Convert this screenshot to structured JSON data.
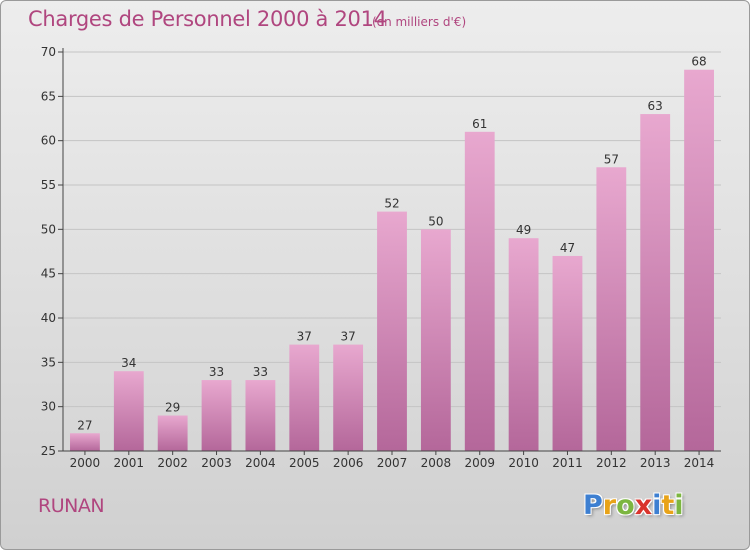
{
  "title": "Charges de Personnel 2000 à 2014",
  "subtitle": "(en milliers d'€)",
  "location": "RUNAN",
  "logo": {
    "text": "Proxiti",
    "letters": [
      {
        "ch": "P",
        "color": "#3d7fd1"
      },
      {
        "ch": "r",
        "color": "#e8a318"
      },
      {
        "ch": "o",
        "color": "#7cb640"
      },
      {
        "ch": "x",
        "color": "#d9342c"
      },
      {
        "ch": "i",
        "color": "#3d7fd1"
      },
      {
        "ch": "t",
        "color": "#e8a318"
      },
      {
        "ch": "i",
        "color": "#7cb640"
      }
    ]
  },
  "colors": {
    "bar_top": "#e8a8cf",
    "bar_bottom": "#b4679a",
    "text_accent": "#b0467f",
    "axis": "#444444"
  },
  "chart_data": {
    "type": "bar",
    "categories": [
      "2000",
      "2001",
      "2002",
      "2003",
      "2004",
      "2005",
      "2006",
      "2007",
      "2008",
      "2009",
      "2010",
      "2011",
      "2012",
      "2013",
      "2014"
    ],
    "values": [
      27,
      34,
      29,
      33,
      33,
      37,
      37,
      52,
      50,
      61,
      49,
      47,
      57,
      63,
      68
    ],
    "ylim": [
      25,
      70
    ],
    "yticks": [
      25,
      30,
      35,
      40,
      45,
      50,
      55,
      60,
      65,
      70
    ],
    "grid": true,
    "data_labels": true
  }
}
